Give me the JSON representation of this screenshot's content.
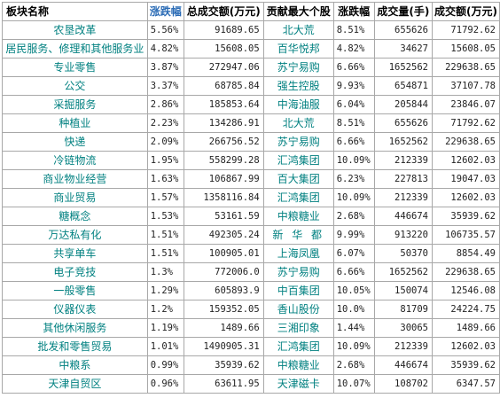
{
  "headers": [
    "板块名称",
    "涨跌幅",
    "总成交额(万元)",
    "贡献最大个股",
    "涨跌幅",
    "成交量(手)",
    "成交额(万元)"
  ],
  "colors": {
    "header_accent": "#2a6bb5",
    "text_teal": "#008080",
    "border": "#a8a8a8"
  },
  "rows": [
    {
      "sector": "农垦改革",
      "change": "5.56%",
      "turnover": "91689.65",
      "stock": "北大荒",
      "stock_change": "8.51%",
      "volume": "655626",
      "amount": "71792.62"
    },
    {
      "sector": "居民服务、修理和其他服务业",
      "change": "4.82%",
      "turnover": "15608.05",
      "stock": "百华悦邦",
      "stock_change": "4.82%",
      "volume": "34627",
      "amount": "15608.05"
    },
    {
      "sector": "专业零售",
      "change": "3.87%",
      "turnover": "272947.06",
      "stock": "苏宁易购",
      "stock_change": "6.66%",
      "volume": "1652562",
      "amount": "229638.65"
    },
    {
      "sector": "公交",
      "change": "3.37%",
      "turnover": "68785.84",
      "stock": "强生控股",
      "stock_change": "9.93%",
      "volume": "654871",
      "amount": "37107.78"
    },
    {
      "sector": "采掘服务",
      "change": "2.86%",
      "turnover": "185853.64",
      "stock": "中海油服",
      "stock_change": "6.04%",
      "volume": "205844",
      "amount": "23846.07"
    },
    {
      "sector": "种植业",
      "change": "2.23%",
      "turnover": "134286.91",
      "stock": "北大荒",
      "stock_change": "8.51%",
      "volume": "655626",
      "amount": "71792.62"
    },
    {
      "sector": "快递",
      "change": "2.09%",
      "turnover": "266756.52",
      "stock": "苏宁易购",
      "stock_change": "6.66%",
      "volume": "1652562",
      "amount": "229638.65"
    },
    {
      "sector": "冷链物流",
      "change": "1.95%",
      "turnover": "558299.28",
      "stock": "汇鸿集团",
      "stock_change": "10.09%",
      "volume": "212339",
      "amount": "12602.03"
    },
    {
      "sector": "商业物业经营",
      "change": "1.63%",
      "turnover": "106867.99",
      "stock": "百大集团",
      "stock_change": "6.23%",
      "volume": "227813",
      "amount": "19047.03"
    },
    {
      "sector": "商业贸易",
      "change": "1.57%",
      "turnover": "1358116.84",
      "stock": "汇鸿集团",
      "stock_change": "10.09%",
      "volume": "212339",
      "amount": "12602.03"
    },
    {
      "sector": "糖概念",
      "change": "1.53%",
      "turnover": "53161.59",
      "stock": "中粮糖业",
      "stock_change": "2.68%",
      "volume": "446674",
      "amount": "35939.62"
    },
    {
      "sector": "万达私有化",
      "change": "1.51%",
      "turnover": "492305.24",
      "stock": "新 华 都",
      "stock_change": "9.99%",
      "volume": "913220",
      "amount": "106735.57"
    },
    {
      "sector": "共享单车",
      "change": "1.51%",
      "turnover": "100905.01",
      "stock": "上海凤凰",
      "stock_change": "6.07%",
      "volume": "50370",
      "amount": "8854.49"
    },
    {
      "sector": "电子竞技",
      "change": "1.3%",
      "turnover": "772006.0",
      "stock": "苏宁易购",
      "stock_change": "6.66%",
      "volume": "1652562",
      "amount": "229638.65"
    },
    {
      "sector": "一般零售",
      "change": "1.29%",
      "turnover": "605893.9",
      "stock": "中百集团",
      "stock_change": "10.05%",
      "volume": "150074",
      "amount": "12546.08"
    },
    {
      "sector": "仪器仪表",
      "change": "1.2%",
      "turnover": "159352.05",
      "stock": "香山股份",
      "stock_change": "10.0%",
      "volume": "81709",
      "amount": "24224.75"
    },
    {
      "sector": "其他休闲服务",
      "change": "1.19%",
      "turnover": "1489.66",
      "stock": "三湘印象",
      "stock_change": "1.44%",
      "volume": "30065",
      "amount": "1489.66"
    },
    {
      "sector": "批发和零售贸易",
      "change": "1.01%",
      "turnover": "1490905.31",
      "stock": "汇鸿集团",
      "stock_change": "10.09%",
      "volume": "212339",
      "amount": "12602.03"
    },
    {
      "sector": "中粮系",
      "change": "0.99%",
      "turnover": "35939.62",
      "stock": "中粮糖业",
      "stock_change": "2.68%",
      "volume": "446674",
      "amount": "35939.62"
    },
    {
      "sector": "天津自贸区",
      "change": "0.96%",
      "turnover": "63611.95",
      "stock": "天津磁卡",
      "stock_change": "10.07%",
      "volume": "108702",
      "amount": "6347.57"
    }
  ]
}
